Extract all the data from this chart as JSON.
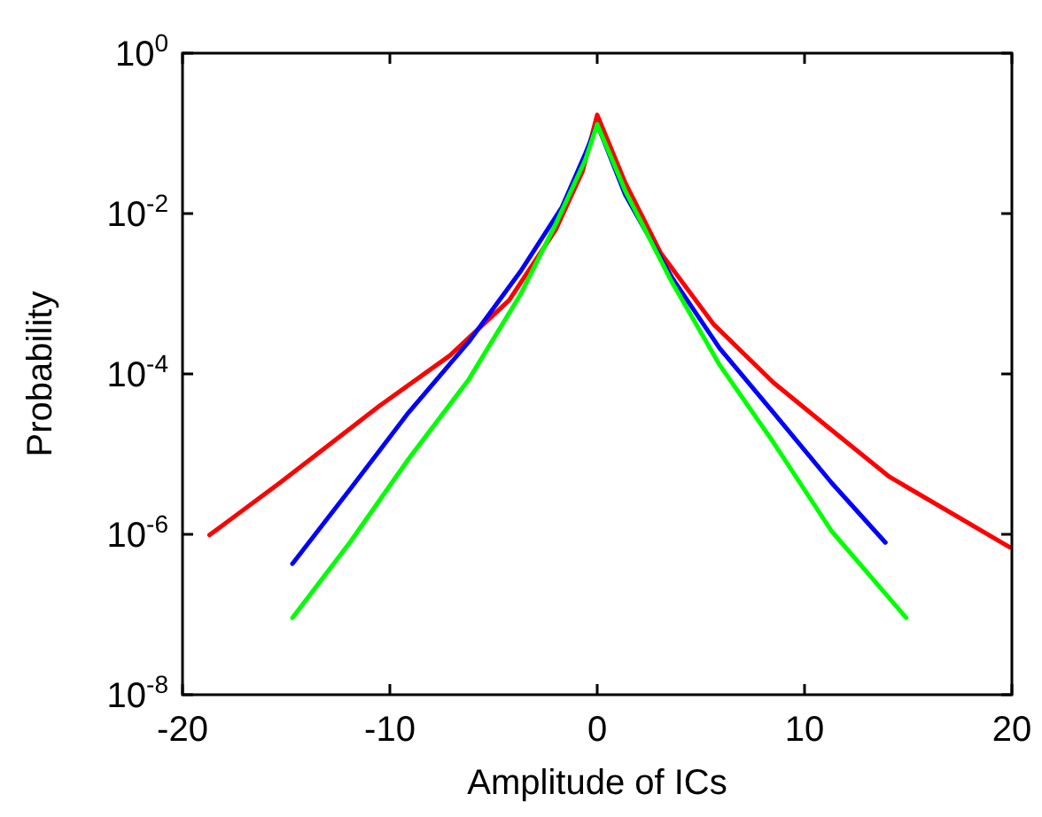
{
  "chart_data": {
    "type": "line",
    "xlabel": "Amplitude of ICs",
    "ylabel": "Probability",
    "log": "y",
    "grid": false,
    "marker": "none",
    "line_style": "solid",
    "xlim": [
      -20,
      20
    ],
    "xticks": [
      -20,
      -10,
      0,
      10,
      20
    ],
    "ylim": [
      1e-08,
      1
    ],
    "yticks": [
      {
        "value": 1,
        "label": "10$^{0}$"
      },
      {
        "value": 0.01,
        "label": "10$^{-2}$"
      },
      {
        "value": 0.0001,
        "label": "10$^{-4}$"
      },
      {
        "value": 1e-06,
        "label": "10$^{-6}$"
      },
      {
        "value": 1e-08,
        "label": "10$^{-8}$"
      }
    ],
    "series": [
      {
        "color": "#ff0000",
        "x": [
          -18.7,
          -15.3,
          -10.5,
          -7.1,
          -4.25,
          -2.0,
          -0.7,
          0,
          1.36,
          3.07,
          5.6,
          8.5,
          11.3,
          14.1,
          19.9
        ],
        "values": [
          9.8e-07,
          4.4e-06,
          4e-05,
          0.00017,
          0.00083,
          0.0063,
          0.034,
          0.17,
          0.024,
          0.0032,
          0.00042,
          7.8e-05,
          2e-05,
          5.2e-06,
          6.9e-07
        ]
      },
      {
        "color": "#0000ff",
        "x": [
          -14.7,
          -11.9,
          -9.1,
          -6.2,
          -3.7,
          -1.7,
          -0.57,
          0,
          1.36,
          3.6,
          5.9,
          8.5,
          11.3,
          13.9
        ],
        "values": [
          4.3e-07,
          3.7e-06,
          3.3e-05,
          0.00025,
          0.0019,
          0.012,
          0.056,
          0.13,
          0.017,
          0.0016,
          0.00021,
          3.3e-05,
          4.4e-06,
          7.9e-07
        ]
      },
      {
        "color": "#00ff00",
        "x": [
          -14.7,
          -11.9,
          -9.1,
          -6.2,
          -3.7,
          -2.0,
          -0.57,
          0,
          1.36,
          3.6,
          5.9,
          8.5,
          11.3,
          14.9
        ],
        "values": [
          9.1e-08,
          8.1e-07,
          8.7e-06,
          8.5e-05,
          0.00098,
          0.0074,
          0.047,
          0.13,
          0.019,
          0.0014,
          0.00013,
          1.4e-05,
          1.1e-06,
          9.1e-08
        ]
      }
    ]
  }
}
